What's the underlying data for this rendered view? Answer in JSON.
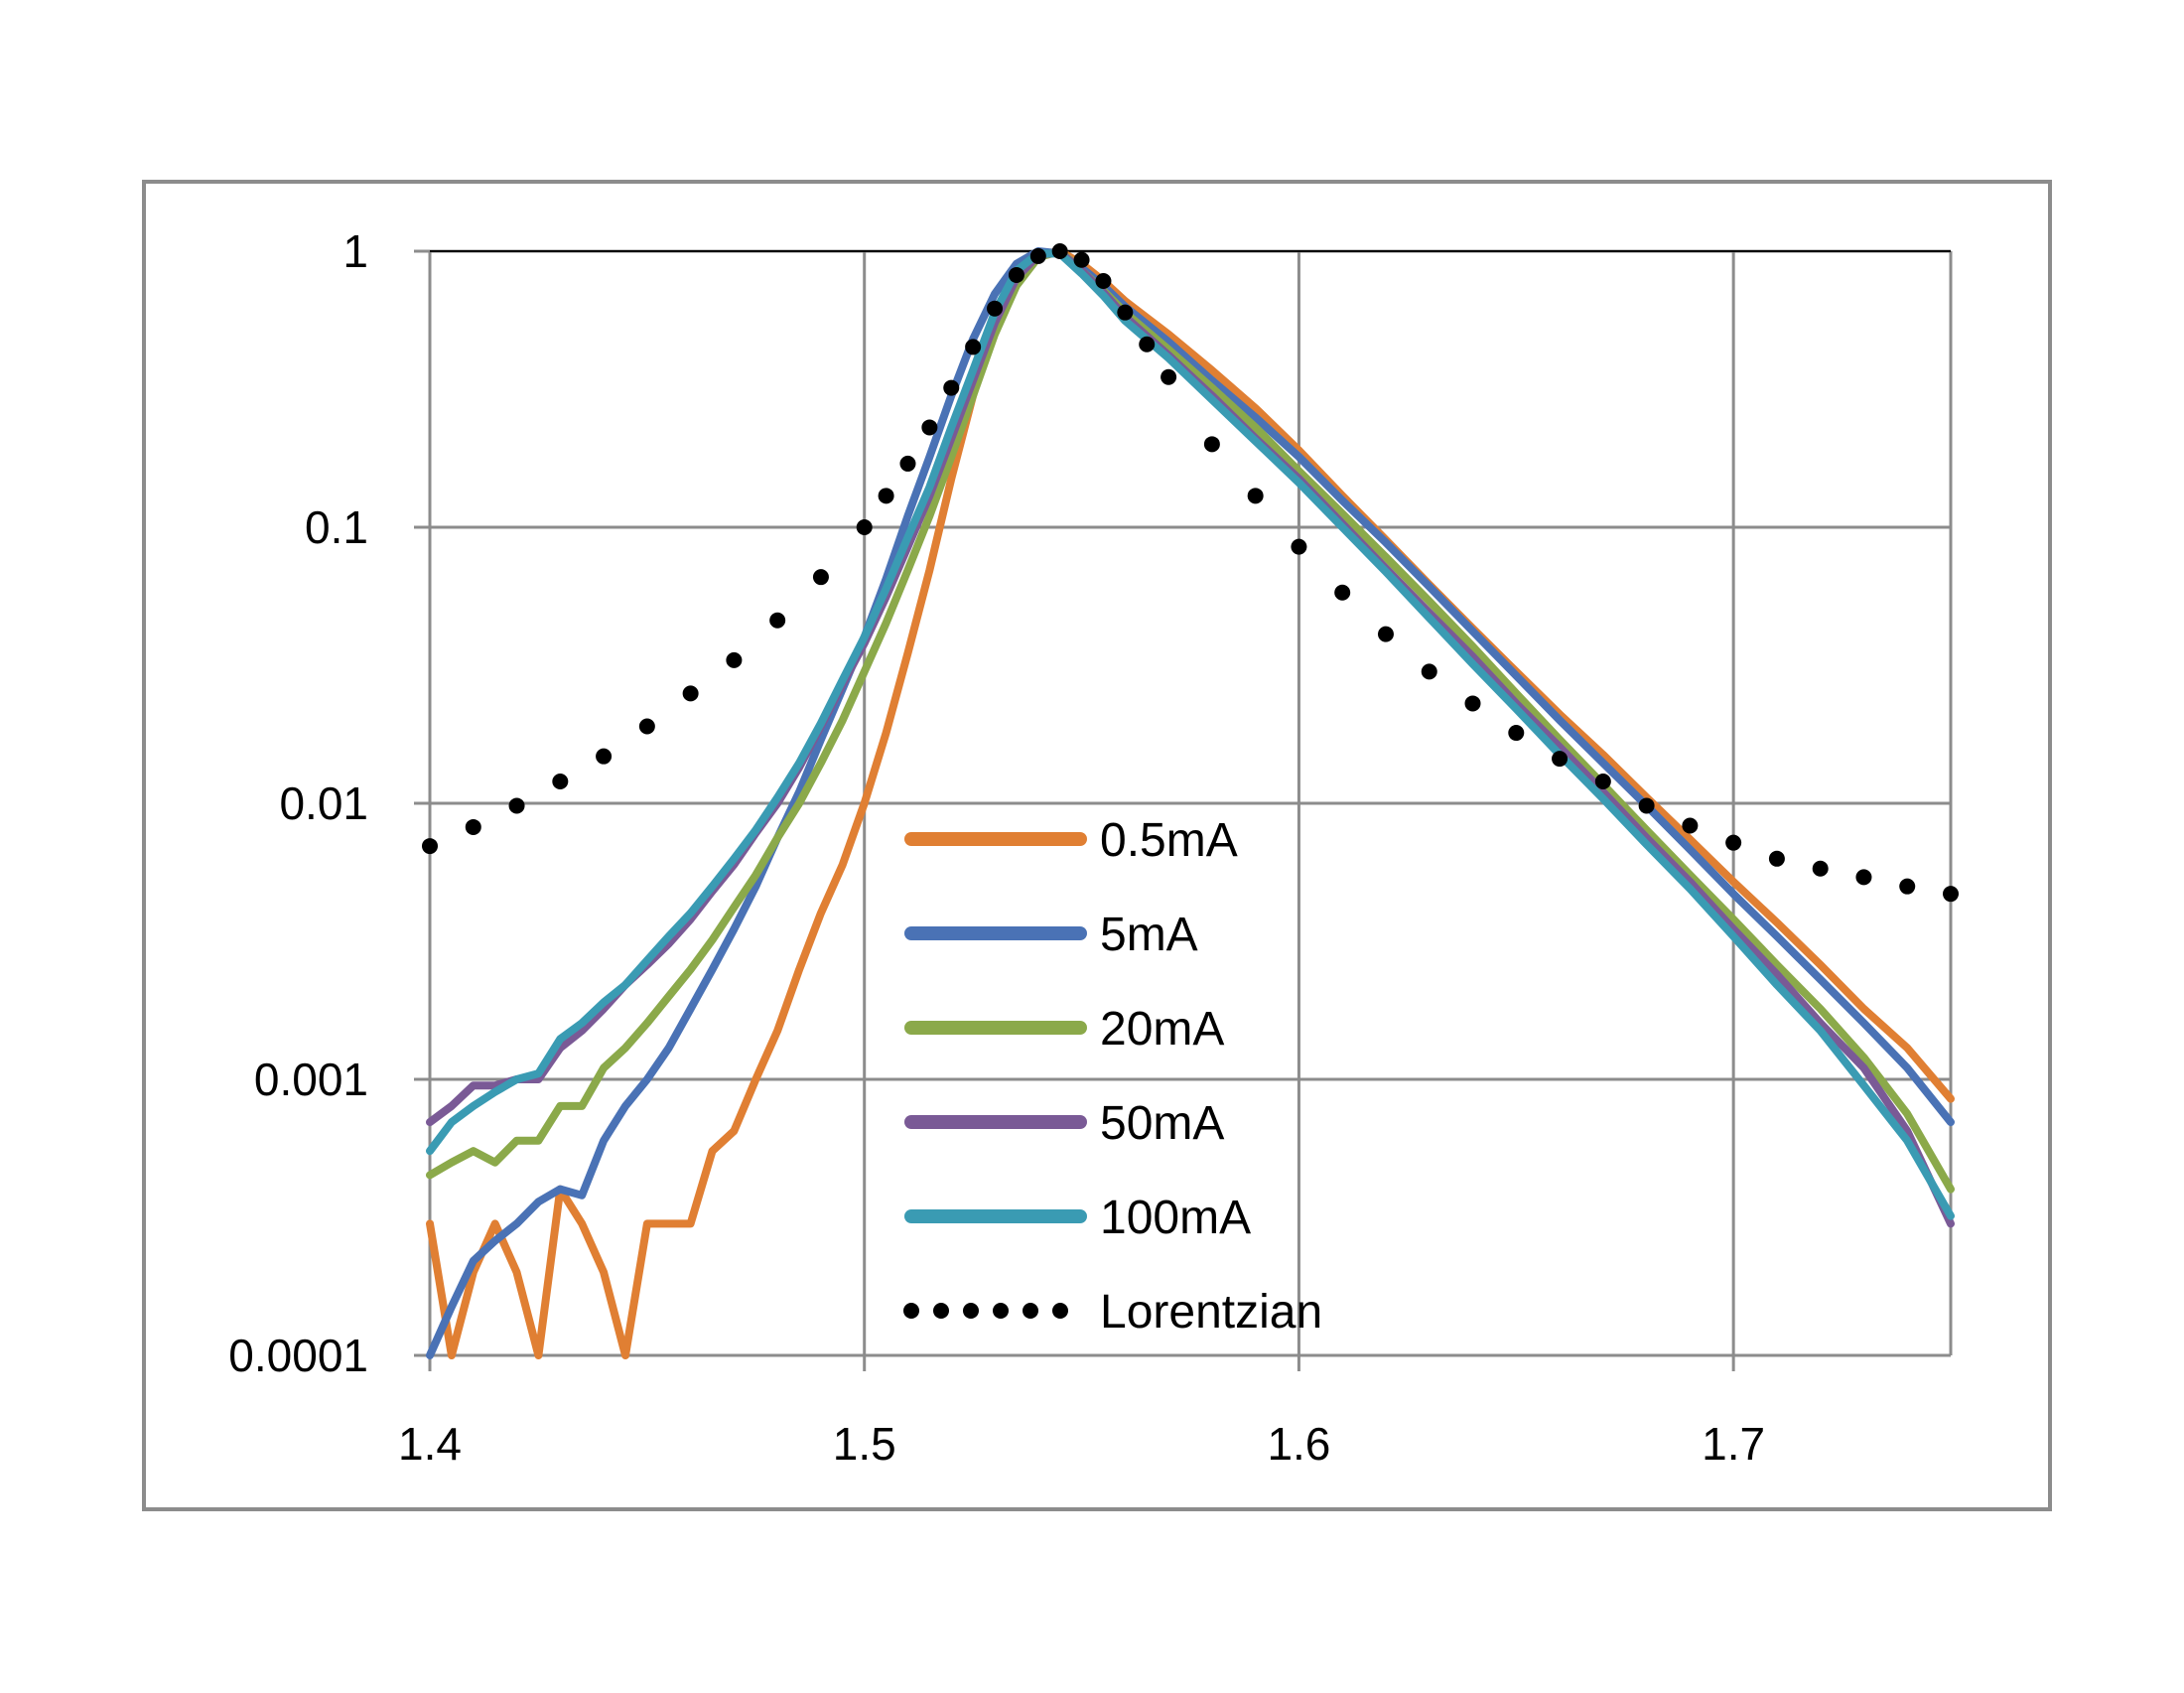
{
  "chart_data": {
    "type": "line",
    "title": "",
    "xlabel": "",
    "ylabel": "",
    "xlim": [
      1.4,
      1.75
    ],
    "ylim": [
      0.0001,
      1
    ],
    "yscale": "log",
    "grid": true,
    "legend_position": "center-bottom",
    "x_ticks": [
      "1.4",
      "1.5",
      "1.6",
      "1.7"
    ],
    "y_ticks": [
      "1",
      "0.1",
      "0.01",
      "0.001",
      "0.0001"
    ],
    "series": [
      {
        "name": "0.5mA",
        "color": "#E07F33",
        "style": "solid",
        "x": [
          1.4,
          1.405,
          1.41,
          1.415,
          1.42,
          1.425,
          1.43,
          1.435,
          1.44,
          1.445,
          1.45,
          1.455,
          1.46,
          1.465,
          1.47,
          1.475,
          1.48,
          1.485,
          1.49,
          1.495,
          1.5,
          1.505,
          1.51,
          1.515,
          1.52,
          1.525,
          1.53,
          1.535,
          1.54,
          1.545,
          1.55,
          1.555,
          1.56,
          1.57,
          1.58,
          1.59,
          1.6,
          1.61,
          1.62,
          1.63,
          1.64,
          1.65,
          1.66,
          1.67,
          1.68,
          1.69,
          1.7,
          1.71,
          1.72,
          1.73,
          1.74,
          1.75
        ],
        "y": [
          0.0003,
          0.0001,
          0.0002,
          0.0003,
          0.0002,
          0.0001,
          0.0004,
          0.0003,
          0.0002,
          0.0001,
          0.0003,
          0.0003,
          0.0003,
          0.00055,
          0.00065,
          0.001,
          0.0015,
          0.0025,
          0.004,
          0.006,
          0.01,
          0.018,
          0.035,
          0.07,
          0.15,
          0.3,
          0.55,
          0.82,
          0.97,
          1.0,
          0.9,
          0.78,
          0.66,
          0.5,
          0.37,
          0.27,
          0.19,
          0.13,
          0.09,
          0.062,
          0.043,
          0.03,
          0.021,
          0.015,
          0.0105,
          0.0074,
          0.0052,
          0.0037,
          0.0026,
          0.0018,
          0.0013,
          0.00085
        ]
      },
      {
        "name": "5mA",
        "color": "#4A72B5",
        "style": "solid",
        "x": [
          1.4,
          1.405,
          1.41,
          1.415,
          1.42,
          1.425,
          1.43,
          1.435,
          1.44,
          1.445,
          1.45,
          1.455,
          1.46,
          1.465,
          1.47,
          1.475,
          1.48,
          1.485,
          1.49,
          1.495,
          1.5,
          1.505,
          1.51,
          1.515,
          1.52,
          1.525,
          1.53,
          1.535,
          1.54,
          1.545,
          1.55,
          1.555,
          1.56,
          1.57,
          1.58,
          1.59,
          1.6,
          1.61,
          1.62,
          1.63,
          1.64,
          1.65,
          1.66,
          1.67,
          1.68,
          1.69,
          1.7,
          1.71,
          1.72,
          1.73,
          1.74,
          1.75
        ],
        "y": [
          0.0001,
          0.00015,
          0.00022,
          0.00026,
          0.0003,
          0.00036,
          0.0004,
          0.00038,
          0.0006,
          0.0008,
          0.001,
          0.0013,
          0.0018,
          0.0025,
          0.0035,
          0.005,
          0.0075,
          0.011,
          0.017,
          0.026,
          0.04,
          0.065,
          0.11,
          0.18,
          0.3,
          0.48,
          0.7,
          0.9,
          1.0,
          0.98,
          0.87,
          0.75,
          0.63,
          0.47,
          0.34,
          0.25,
          0.18,
          0.125,
          0.088,
          0.061,
          0.042,
          0.029,
          0.02,
          0.014,
          0.0098,
          0.0068,
          0.0047,
          0.0033,
          0.0023,
          0.0016,
          0.0011,
          0.0007
        ]
      },
      {
        "name": "20mA",
        "color": "#8BA94A",
        "style": "solid",
        "x": [
          1.4,
          1.405,
          1.41,
          1.415,
          1.42,
          1.425,
          1.43,
          1.435,
          1.44,
          1.445,
          1.45,
          1.455,
          1.46,
          1.465,
          1.47,
          1.475,
          1.48,
          1.485,
          1.49,
          1.495,
          1.5,
          1.505,
          1.51,
          1.515,
          1.52,
          1.525,
          1.53,
          1.535,
          1.54,
          1.545,
          1.55,
          1.555,
          1.56,
          1.57,
          1.58,
          1.59,
          1.6,
          1.61,
          1.62,
          1.63,
          1.64,
          1.65,
          1.66,
          1.67,
          1.68,
          1.69,
          1.7,
          1.71,
          1.72,
          1.73,
          1.74,
          1.75
        ],
        "y": [
          0.00045,
          0.0005,
          0.00055,
          0.0005,
          0.0006,
          0.0006,
          0.0008,
          0.0008,
          0.0011,
          0.0013,
          0.0016,
          0.002,
          0.0025,
          0.0032,
          0.0042,
          0.0055,
          0.0075,
          0.01,
          0.014,
          0.02,
          0.03,
          0.045,
          0.07,
          0.11,
          0.18,
          0.3,
          0.5,
          0.75,
          0.95,
          1.0,
          0.85,
          0.72,
          0.6,
          0.44,
          0.32,
          0.23,
          0.16,
          0.112,
          0.078,
          0.054,
          0.037,
          0.025,
          0.017,
          0.0117,
          0.008,
          0.0055,
          0.0038,
          0.0026,
          0.0018,
          0.0012,
          0.00075,
          0.0004
        ]
      },
      {
        "name": "50mA",
        "color": "#7A5A96",
        "style": "solid",
        "x": [
          1.4,
          1.405,
          1.41,
          1.415,
          1.42,
          1.425,
          1.43,
          1.435,
          1.44,
          1.445,
          1.45,
          1.455,
          1.46,
          1.465,
          1.47,
          1.475,
          1.48,
          1.485,
          1.49,
          1.495,
          1.5,
          1.505,
          1.51,
          1.515,
          1.52,
          1.525,
          1.53,
          1.535,
          1.54,
          1.545,
          1.55,
          1.555,
          1.56,
          1.57,
          1.58,
          1.59,
          1.6,
          1.61,
          1.62,
          1.63,
          1.64,
          1.65,
          1.66,
          1.67,
          1.68,
          1.69,
          1.7,
          1.71,
          1.72,
          1.73,
          1.74,
          1.75
        ],
        "y": [
          0.0007,
          0.0008,
          0.00095,
          0.00095,
          0.001,
          0.001,
          0.0013,
          0.0015,
          0.0018,
          0.0022,
          0.0026,
          0.0031,
          0.0038,
          0.0048,
          0.006,
          0.0078,
          0.01,
          0.0135,
          0.019,
          0.027,
          0.038,
          0.056,
          0.085,
          0.13,
          0.21,
          0.34,
          0.55,
          0.8,
          0.97,
          0.99,
          0.85,
          0.71,
          0.58,
          0.42,
          0.3,
          0.21,
          0.15,
          0.103,
          0.071,
          0.049,
          0.034,
          0.023,
          0.016,
          0.011,
          0.0075,
          0.0052,
          0.0035,
          0.0024,
          0.0016,
          0.0011,
          0.00065,
          0.0003
        ]
      },
      {
        "name": "100mA",
        "color": "#3A9BB3",
        "style": "solid",
        "x": [
          1.4,
          1.405,
          1.41,
          1.415,
          1.42,
          1.425,
          1.43,
          1.435,
          1.44,
          1.445,
          1.45,
          1.455,
          1.46,
          1.465,
          1.47,
          1.475,
          1.48,
          1.485,
          1.49,
          1.495,
          1.5,
          1.505,
          1.51,
          1.515,
          1.52,
          1.525,
          1.53,
          1.535,
          1.54,
          1.545,
          1.55,
          1.555,
          1.56,
          1.57,
          1.58,
          1.59,
          1.6,
          1.61,
          1.62,
          1.63,
          1.64,
          1.65,
          1.66,
          1.67,
          1.68,
          1.69,
          1.7,
          1.71,
          1.72,
          1.73,
          1.74,
          1.75
        ],
        "y": [
          0.00055,
          0.0007,
          0.0008,
          0.0009,
          0.001,
          0.00105,
          0.0014,
          0.0016,
          0.0019,
          0.0022,
          0.0027,
          0.0033,
          0.004,
          0.005,
          0.0063,
          0.008,
          0.0105,
          0.014,
          0.0195,
          0.028,
          0.04,
          0.06,
          0.092,
          0.14,
          0.23,
          0.37,
          0.6,
          0.85,
          0.98,
          0.98,
          0.83,
          0.69,
          0.56,
          0.41,
          0.29,
          0.205,
          0.145,
          0.1,
          0.069,
          0.047,
          0.032,
          0.022,
          0.015,
          0.0104,
          0.0071,
          0.0049,
          0.0033,
          0.0022,
          0.0015,
          0.00095,
          0.0006,
          0.00032
        ]
      },
      {
        "name": "Lorentzian",
        "color": "#000000",
        "style": "dotted",
        "x": [
          1.4,
          1.41,
          1.42,
          1.43,
          1.44,
          1.45,
          1.46,
          1.47,
          1.48,
          1.49,
          1.5,
          1.505,
          1.51,
          1.515,
          1.52,
          1.525,
          1.53,
          1.535,
          1.54,
          1.545,
          1.55,
          1.555,
          1.56,
          1.565,
          1.57,
          1.58,
          1.59,
          1.6,
          1.61,
          1.62,
          1.63,
          1.64,
          1.65,
          1.66,
          1.67,
          1.68,
          1.69,
          1.7,
          1.71,
          1.72,
          1.73,
          1.74,
          1.75
        ],
        "y": [
          0.007,
          0.0082,
          0.0098,
          0.012,
          0.0148,
          0.019,
          0.025,
          0.033,
          0.046,
          0.066,
          0.1,
          0.13,
          0.17,
          0.23,
          0.32,
          0.45,
          0.62,
          0.82,
          0.96,
          1.0,
          0.93,
          0.78,
          0.6,
          0.46,
          0.35,
          0.2,
          0.13,
          0.085,
          0.058,
          0.041,
          0.03,
          0.023,
          0.018,
          0.0145,
          0.012,
          0.0098,
          0.0083,
          0.0072,
          0.0063,
          0.0058,
          0.0054,
          0.005,
          0.0047
        ]
      }
    ]
  }
}
